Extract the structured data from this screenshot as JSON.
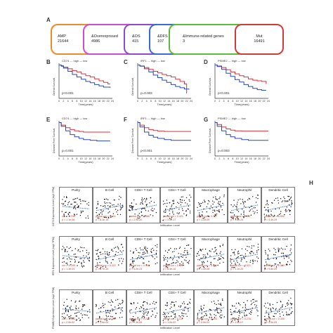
{
  "panels": {
    "A": "A",
    "B": "B",
    "C": "C",
    "D": "D",
    "E": "E",
    "F": "F",
    "G": "G",
    "H": "H"
  },
  "venn": {
    "boxes": [
      {
        "label": "AMP",
        "value": "21644",
        "color": "#ef8a2a"
      },
      {
        "label": "&Overexprssed",
        "value": "4986",
        "color": "#d24ad2"
      },
      {
        "label": "&OS",
        "value": "415",
        "color": "#8a4ad8"
      },
      {
        "label": "&DFS",
        "value": "107",
        "color": "#3a6ad8"
      },
      {
        "label": "&Immune-related genes",
        "value": "3",
        "color": "#5dbb3a"
      },
      {
        "label": "Mut",
        "value": "16491",
        "color": "#d23a3a"
      }
    ]
  },
  "km_common": {
    "x_ticks": [
      "0",
      "2",
      "4",
      "6",
      "8",
      "10",
      "12",
      "14",
      "16",
      "18",
      "20",
      "22",
      "24"
    ],
    "x_label": "Time(years)",
    "legend_high": "high",
    "legend_low": "low",
    "high_color": "#e0303a",
    "low_color": "#2848b8"
  },
  "km": [
    {
      "gene": "CD74",
      "ylabel": "Overall Survival",
      "p": "p<0.001"
    },
    {
      "gene": "IRF1",
      "ylabel": "Overall Survival",
      "p": "p=0.003"
    },
    {
      "gene": "PSME2",
      "ylabel": "Overall Survival",
      "p": "p<0.001"
    },
    {
      "gene": "CD74",
      "ylabel": "Disease Free Survival",
      "p": "p=0.001"
    },
    {
      "gene": "IRF1",
      "ylabel": "Disease Free Survival",
      "p": "p<0.001"
    },
    {
      "gene": "PSME2",
      "ylabel": "Disease Free Survival",
      "p": "p=0.003"
    }
  ],
  "immune": {
    "columns": [
      "Purity",
      "B Cell",
      "CD8+ T Cell",
      "CD4+ T Cell",
      "Macrophage",
      "Neutrophil",
      "Dendritic Cell"
    ],
    "x_label": "Infiltration Level",
    "rows": [
      {
        "ylabel": "CD74 Expression Level (log2 TPM)",
        "stats": [
          [
            "cor = -0.236",
            "p = 1.1e-06"
          ],
          [
            "partial.cor = 0.401",
            "p = 8.1e-15"
          ],
          [
            "partial.cor = 0.466",
            "p = 2.9e-20"
          ],
          [
            "partial.cor = 0.421",
            "p = 3.5e-17"
          ],
          [
            "partial.cor = 0.317",
            "p = 1.2e-09"
          ],
          [
            "partial.cor = 0.511",
            "p = 1.5e-24"
          ],
          [
            "partial.cor = 0.552",
            "p = 4.4e-29"
          ]
        ]
      },
      {
        "ylabel": "IRF1 Expression Level (log2 TPM)",
        "stats": [
          [
            "cor = -0.195",
            "p = 1.3e-04"
          ],
          [
            "partial.cor = 0.322",
            "p = 9.7e-10"
          ],
          [
            "partial.cor = 0.498",
            "p = 4.2e-23"
          ],
          [
            "partial.cor = 0.416",
            "p = 8.4e-16"
          ],
          [
            "partial.cor = 0.301",
            "p = 1.0e-08"
          ],
          [
            "partial.cor = 0.521",
            "p = 1.1e-25"
          ],
          [
            "partial.cor = 0.549",
            "p = 9.8e-29"
          ]
        ]
      },
      {
        "ylabel": "PSME2 Expression Level (log2 TPM)",
        "stats": [
          [
            "cor = -0.112",
            "p = 2.9e-02"
          ],
          [
            "partial.cor = 0.201",
            "p = 1.6e-04"
          ],
          [
            "partial.cor = 0.238",
            "p = 7.3e-06"
          ],
          [
            "partial.cor = 0.137",
            "p = 1.0e-02"
          ],
          [
            "partial.cor = 0.103",
            "p = 5.5e-02"
          ],
          [
            "partial.cor = 0.278",
            "p = 1.5e-07"
          ],
          [
            "partial.cor = 0.309",
            "p = 4.5e-09"
          ]
        ]
      }
    ]
  }
}
